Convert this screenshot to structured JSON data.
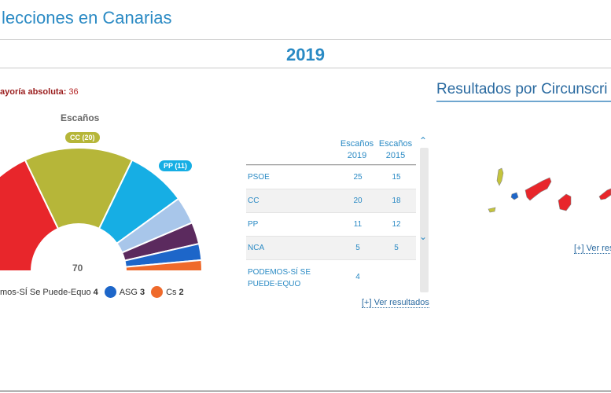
{
  "header": {
    "title": "lecciones en Canarias"
  },
  "year": "2019",
  "majority": {
    "label": "ayoría absoluta:",
    "value": "36"
  },
  "chart_data": {
    "type": "pie",
    "title": "Escaños",
    "total_label": "70",
    "series": [
      {
        "name": "PSOE",
        "value": 25,
        "color": "#e8262b"
      },
      {
        "name": "CC",
        "value": 20,
        "color": "#b6b639",
        "pill": "CC (20)"
      },
      {
        "name": "PP",
        "value": 11,
        "color": "#16aee4",
        "pill": "PP (11)"
      },
      {
        "name": "NCA",
        "value": 5,
        "color": "#a8c6ea"
      },
      {
        "name": "PODEMOS-SÍ Se Puede-Equo",
        "value": 4,
        "color": "#5b2a5e"
      },
      {
        "name": "ASG",
        "value": 3,
        "color": "#1d66c9"
      },
      {
        "name": "Cs",
        "value": 2,
        "color": "#ef6a2b"
      }
    ]
  },
  "legend": [
    {
      "label": "mos-SÍ Se Puede-Equo",
      "value": "4",
      "color": "#5b2a5e",
      "show_dot": false
    },
    {
      "label": "ASG",
      "value": "3",
      "color": "#1d66c9",
      "show_dot": true
    },
    {
      "label": "Cs",
      "value": "2",
      "color": "#ef6a2b",
      "show_dot": true
    }
  ],
  "table": {
    "col1": "Escaños\n2019",
    "col2": "Escaños\n2015",
    "rows": [
      {
        "name": "PSOE",
        "v2019": "25",
        "v2015": "15"
      },
      {
        "name": "CC",
        "v2019": "20",
        "v2015": "18"
      },
      {
        "name": "PP",
        "v2019": "11",
        "v2015": "12"
      },
      {
        "name": "NCA",
        "v2019": "5",
        "v2015": "5"
      },
      {
        "name": "PODEMOS-SÍ SE PUEDE-EQUO",
        "v2019": "4",
        "v2015": ""
      }
    ],
    "link": "[+] Ver resultados"
  },
  "map": {
    "title": "Resultados por Circunscri",
    "link": "[+] Ver res",
    "colors": {
      "cc": "#c4c43c",
      "psoe": "#e8262b",
      "asg": "#1d66c9"
    }
  }
}
